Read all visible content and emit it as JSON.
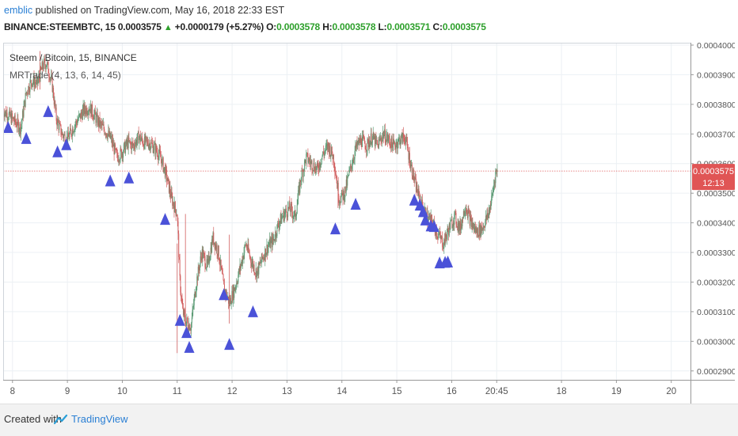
{
  "header": {
    "user": "emblic",
    "published_text": "published on TradingView.com, May 16, 2018 22:33 EST"
  },
  "ohlc": {
    "symbol": "BINANCE:STEEMBTC, 15",
    "price": "0.0003575",
    "change": "+0.0000179 (+5.27%)",
    "o_label": "O:",
    "o": "0.0003578",
    "h_label": "H:",
    "h": "0.0003578",
    "l_label": "L:",
    "l": "0.0003571",
    "c_label": "C:",
    "c": "0.0003575"
  },
  "chart_data": {
    "type": "candlestick",
    "title": "Steem / Bitcoin, 15, BINANCE",
    "indicator": "MRTrade (4, 13, 6, 14, 45)",
    "y_ticks": [
      "0.0004000",
      "0.0003900",
      "0.0003800",
      "0.0003700",
      "0.0003600",
      "0.0003500",
      "0.0003400",
      "0.0003300",
      "0.0003200",
      "0.0003100",
      "0.0003000",
      "0.0002900"
    ],
    "ylim": [
      0.000287,
      0.0004008
    ],
    "x_ticks": [
      {
        "label": "8",
        "day": 8
      },
      {
        "label": "9",
        "day": 9
      },
      {
        "label": "10",
        "day": 10
      },
      {
        "label": "11",
        "day": 11
      },
      {
        "label": "12",
        "day": 12
      },
      {
        "label": "13",
        "day": 13
      },
      {
        "label": "14",
        "day": 14
      },
      {
        "label": "15",
        "day": 15
      },
      {
        "label": "16",
        "day": 16
      },
      {
        "label": "20:45",
        "day": 16.82
      },
      {
        "label": "18",
        "day": 18
      },
      {
        "label": "19",
        "day": 19
      },
      {
        "label": "20",
        "day": 20
      }
    ],
    "xlim": [
      7.83,
      20.35
    ],
    "last_price": "0.0003575",
    "last_price_value": 0.0003575,
    "countdown": "12:13",
    "price_path": [
      [
        7.83,
        0.000378
      ],
      [
        8.0,
        0.000375
      ],
      [
        8.15,
        0.000372
      ],
      [
        8.25,
        0.000384
      ],
      [
        8.35,
        0.000388
      ],
      [
        8.45,
        0.000387
      ],
      [
        8.55,
        0.000393
      ],
      [
        8.62,
        0.000394
      ],
      [
        8.72,
        0.000387
      ],
      [
        8.8,
        0.000375
      ],
      [
        8.9,
        0.00037
      ],
      [
        9.0,
        0.000368
      ],
      [
        9.1,
        0.000372
      ],
      [
        9.2,
        0.000375
      ],
      [
        9.3,
        0.000378
      ],
      [
        9.4,
        0.000379
      ],
      [
        9.5,
        0.000376
      ],
      [
        9.6,
        0.000373
      ],
      [
        9.7,
        0.000371
      ],
      [
        9.8,
        0.000368
      ],
      [
        9.9,
        0.000362
      ],
      [
        10.0,
        0.000364
      ],
      [
        10.1,
        0.000367
      ],
      [
        10.2,
        0.000366
      ],
      [
        10.3,
        0.000369
      ],
      [
        10.4,
        0.000367
      ],
      [
        10.5,
        0.000367
      ],
      [
        10.6,
        0.000365
      ],
      [
        10.7,
        0.000362
      ],
      [
        10.8,
        0.000356
      ],
      [
        10.9,
        0.000348
      ],
      [
        11.0,
        0.000343
      ],
      [
        11.05,
        0.00032
      ],
      [
        11.1,
        0.00031
      ],
      [
        11.15,
        0.000307
      ],
      [
        11.25,
        0.000305
      ],
      [
        11.35,
        0.00032
      ],
      [
        11.45,
        0.00033
      ],
      [
        11.55,
        0.000325
      ],
      [
        11.65,
        0.000335
      ],
      [
        11.75,
        0.00033
      ],
      [
        11.85,
        0.000318
      ],
      [
        11.95,
        0.000313
      ],
      [
        12.05,
        0.000318
      ],
      [
        12.15,
        0.000325
      ],
      [
        12.25,
        0.000333
      ],
      [
        12.35,
        0.000327
      ],
      [
        12.45,
        0.000323
      ],
      [
        12.55,
        0.000328
      ],
      [
        12.65,
        0.000332
      ],
      [
        12.75,
        0.000334
      ],
      [
        12.85,
        0.00034
      ],
      [
        12.95,
        0.000343
      ],
      [
        13.05,
        0.000345
      ],
      [
        13.15,
        0.000342
      ],
      [
        13.25,
        0.000355
      ],
      [
        13.35,
        0.000362
      ],
      [
        13.45,
        0.00036
      ],
      [
        13.55,
        0.000358
      ],
      [
        13.65,
        0.000363
      ],
      [
        13.75,
        0.000366
      ],
      [
        13.85,
        0.000362
      ],
      [
        13.95,
        0.000348
      ],
      [
        14.05,
        0.00035
      ],
      [
        14.15,
        0.000358
      ],
      [
        14.25,
        0.000365
      ],
      [
        14.35,
        0.000368
      ],
      [
        14.45,
        0.000366
      ],
      [
        14.55,
        0.000369
      ],
      [
        14.65,
        0.000366
      ],
      [
        14.75,
        0.00037
      ],
      [
        14.85,
        0.000368
      ],
      [
        14.95,
        0.000366
      ],
      [
        15.05,
        0.000368
      ],
      [
        15.15,
        0.000369
      ],
      [
        15.25,
        0.00036
      ],
      [
        15.35,
        0.000352
      ],
      [
        15.45,
        0.000346
      ],
      [
        15.55,
        0.000342
      ],
      [
        15.65,
        0.00034
      ],
      [
        15.75,
        0.000336
      ],
      [
        15.85,
        0.000333
      ],
      [
        15.95,
        0.000338
      ],
      [
        16.05,
        0.000342
      ],
      [
        16.15,
        0.000338
      ],
      [
        16.25,
        0.000346
      ],
      [
        16.35,
        0.00034
      ],
      [
        16.45,
        0.000337
      ],
      [
        16.55,
        0.000338
      ],
      [
        16.65,
        0.000342
      ],
      [
        16.72,
        0.000347
      ],
      [
        16.8,
        0.000357
      ],
      [
        16.83,
        0.0003575
      ]
    ],
    "signals": [
      {
        "day": 7.92,
        "price": 0.0003722
      },
      {
        "day": 8.25,
        "price": 0.0003685
      },
      {
        "day": 8.65,
        "price": 0.0003776
      },
      {
        "day": 8.82,
        "price": 0.000364
      },
      {
        "day": 8.98,
        "price": 0.0003664
      },
      {
        "day": 9.78,
        "price": 0.0003542
      },
      {
        "day": 10.12,
        "price": 0.0003552
      },
      {
        "day": 10.78,
        "price": 0.0003412
      },
      {
        "day": 11.05,
        "price": 0.0003071
      },
      {
        "day": 11.17,
        "price": 0.000303
      },
      {
        "day": 11.22,
        "price": 0.000298
      },
      {
        "day": 11.85,
        "price": 0.0003158
      },
      {
        "day": 11.95,
        "price": 0.000299
      },
      {
        "day": 12.38,
        "price": 0.00031
      },
      {
        "day": 13.88,
        "price": 0.000338
      },
      {
        "day": 14.25,
        "price": 0.0003463
      },
      {
        "day": 15.32,
        "price": 0.0003477
      },
      {
        "day": 15.42,
        "price": 0.000346
      },
      {
        "day": 15.48,
        "price": 0.0003438
      },
      {
        "day": 15.52,
        "price": 0.000341
      },
      {
        "day": 15.62,
        "price": 0.000339
      },
      {
        "day": 15.68,
        "price": 0.0003388
      },
      {
        "day": 15.78,
        "price": 0.0003265
      },
      {
        "day": 15.88,
        "price": 0.0003267
      },
      {
        "day": 15.93,
        "price": 0.0003268
      }
    ]
  },
  "colors": {
    "up": "#5d9c76",
    "down": "#d26060",
    "signal": "#4b52d8",
    "lastline": "#e06060",
    "label_bg": "#e05555",
    "grid": "#ecf0f4"
  },
  "footer": {
    "created_with": "Created with",
    "brand": "TradingView"
  }
}
